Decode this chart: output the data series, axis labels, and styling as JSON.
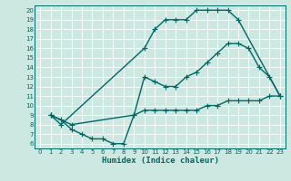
{
  "title": "",
  "xlabel": "Humidex (Indice chaleur)",
  "bg_color": "#cce8e0",
  "grid_color": "#ffffff",
  "line_color": "#006666",
  "xlim": [
    -0.5,
    23.5
  ],
  "ylim": [
    5.5,
    20.5
  ],
  "xticks": [
    0,
    1,
    2,
    3,
    4,
    5,
    6,
    7,
    8,
    9,
    10,
    11,
    12,
    13,
    14,
    15,
    16,
    17,
    18,
    19,
    20,
    21,
    22,
    23
  ],
  "yticks": [
    6,
    7,
    8,
    9,
    10,
    11,
    12,
    13,
    14,
    15,
    16,
    17,
    18,
    19,
    20
  ],
  "line1_x": [
    1,
    2,
    10,
    11,
    12,
    13,
    14,
    15,
    16,
    17,
    18,
    19,
    23
  ],
  "line1_y": [
    9,
    8,
    16,
    18,
    19,
    19,
    19,
    20,
    20,
    20,
    20,
    19,
    11
  ],
  "line2_x": [
    1,
    3,
    9,
    10,
    11,
    12,
    13,
    14,
    15,
    16,
    17,
    18,
    19,
    20,
    21,
    22,
    23
  ],
  "line2_y": [
    9,
    8,
    9,
    13,
    12.5,
    12,
    12,
    13,
    13.5,
    14.5,
    15.5,
    16.5,
    16.5,
    16,
    14,
    13,
    11
  ],
  "line3_x": [
    1,
    2,
    3,
    4,
    5,
    6,
    7,
    8,
    9,
    10,
    11,
    12,
    13,
    14,
    15,
    16,
    17,
    18,
    19,
    20,
    21,
    22,
    23
  ],
  "line3_y": [
    9,
    8.5,
    7.5,
    7,
    6.5,
    6.5,
    6,
    6,
    9,
    9.5,
    9.5,
    9.5,
    9.5,
    9.5,
    9.5,
    10,
    10,
    10.5,
    10.5,
    10.5,
    10.5,
    11,
    11
  ],
  "marker_size": 2.5,
  "line_width": 1.0,
  "tick_fontsize": 5.0,
  "xlabel_fontsize": 6.5
}
